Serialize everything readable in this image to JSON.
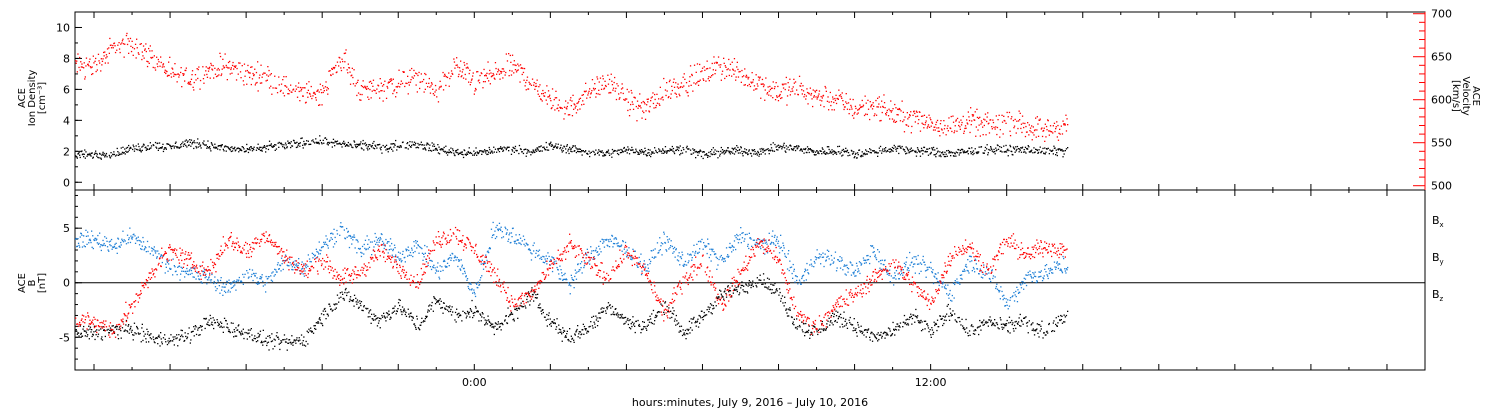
{
  "chart_data": [
    {
      "type": "scatter",
      "panel": "top",
      "ylabel_lines": [
        "ACE",
        "Ion Density",
        "[cm⁻³]"
      ],
      "ylim": [
        -0.5,
        11
      ],
      "yticks": [
        0,
        2,
        4,
        6,
        8,
        10
      ],
      "y2label_lines": [
        "ACE",
        "Velocity",
        "[km/s]"
      ],
      "y2lim": [
        495,
        702
      ],
      "y2ticks": [
        500,
        550,
        600,
        650,
        700
      ],
      "series": [
        {
          "axis": "left",
          "color": "#000000",
          "points": [
            [
              -10.0,
              1.8
            ],
            [
              -9.5,
              1.9
            ],
            [
              -9.0,
              2.2
            ],
            [
              -8.5,
              2.4
            ],
            [
              -8.0,
              2.3
            ],
            [
              -7.5,
              2.6
            ],
            [
              -7.0,
              2.4
            ],
            [
              -6.5,
              2.2
            ],
            [
              -6.0,
              2.1
            ],
            [
              -5.5,
              2.3
            ],
            [
              -5.0,
              2.4
            ],
            [
              -4.5,
              2.6
            ],
            [
              -4.0,
              2.7
            ],
            [
              -3.5,
              2.5
            ],
            [
              -3.0,
              2.4
            ],
            [
              -2.5,
              2.3
            ],
            [
              -2.0,
              2.4
            ],
            [
              -1.5,
              2.5
            ],
            [
              -1.0,
              2.2
            ],
            [
              -0.5,
              2.0
            ],
            [
              0.0,
              1.9
            ],
            [
              0.5,
              2.1
            ],
            [
              1.0,
              2.2
            ],
            [
              1.5,
              2.0
            ],
            [
              2.0,
              2.4
            ],
            [
              2.5,
              2.2
            ],
            [
              3.0,
              2.0
            ],
            [
              3.5,
              1.9
            ],
            [
              4.0,
              2.1
            ],
            [
              4.5,
              2.0
            ],
            [
              5.0,
              2.1
            ],
            [
              5.5,
              2.2
            ],
            [
              6.0,
              1.8
            ],
            [
              6.5,
              2.0
            ],
            [
              7.0,
              2.1
            ],
            [
              7.5,
              2.0
            ],
            [
              8.0,
              2.3
            ],
            [
              8.5,
              2.2
            ],
            [
              9.0,
              2.0
            ],
            [
              9.5,
              2.1
            ],
            [
              10.0,
              1.9
            ],
            [
              10.5,
              2.0
            ],
            [
              11.0,
              2.2
            ],
            [
              11.5,
              2.1
            ],
            [
              12.0,
              2.0
            ],
            [
              12.5,
              1.9
            ],
            [
              13.0,
              2.0
            ],
            [
              13.5,
              2.2
            ],
            [
              14.0,
              2.1
            ],
            [
              14.5,
              2.2
            ],
            [
              15.0,
              2.0
            ],
            [
              15.5,
              2.1
            ]
          ]
        },
        {
          "axis": "right",
          "color": "#ff0000",
          "points": [
            [
              -10.0,
              640
            ],
            [
              -9.5,
              660
            ],
            [
              -9.0,
              665
            ],
            [
              -8.5,
              650
            ],
            [
              -8.0,
              630
            ],
            [
              -7.5,
              625
            ],
            [
              -7.0,
              635
            ],
            [
              -6.5,
              640
            ],
            [
              -6.0,
              630
            ],
            [
              -5.5,
              628
            ],
            [
              -5.0,
              615
            ],
            [
              -4.5,
              607
            ],
            [
              -4.0,
              610
            ],
            [
              -3.5,
              650
            ],
            [
              -3.0,
              610
            ],
            [
              -2.5,
              615
            ],
            [
              -2.0,
              620
            ],
            [
              -1.5,
              625
            ],
            [
              -1.0,
              610
            ],
            [
              -0.5,
              640
            ],
            [
              0.0,
              620
            ],
            [
              0.5,
              630
            ],
            [
              1.0,
              640
            ],
            [
              1.5,
              620
            ],
            [
              2.0,
              600
            ],
            [
              2.5,
              590
            ],
            [
              3.0,
              610
            ],
            [
              3.5,
              620
            ],
            [
              4.0,
              600
            ],
            [
              4.5,
              590
            ],
            [
              5.0,
              610
            ],
            [
              5.5,
              620
            ],
            [
              6.0,
              630
            ],
            [
              6.5,
              640
            ],
            [
              7.0,
              630
            ],
            [
              7.5,
              620
            ],
            [
              8.0,
              610
            ],
            [
              8.5,
              615
            ],
            [
              9.0,
              605
            ],
            [
              9.5,
              600
            ],
            [
              10.0,
              590
            ],
            [
              10.5,
              595
            ],
            [
              11.0,
              585
            ],
            [
              11.5,
              580
            ],
            [
              12.0,
              575
            ],
            [
              12.5,
              570
            ],
            [
              13.0,
              575
            ],
            [
              13.5,
              570
            ],
            [
              14.0,
              575
            ],
            [
              14.5,
              570
            ],
            [
              15.0,
              565
            ],
            [
              15.5,
              570
            ]
          ]
        }
      ]
    },
    {
      "type": "scatter",
      "panel": "bottom",
      "ylabel_lines": [
        "ACE",
        "B",
        "[nT]"
      ],
      "ylim": [
        -8,
        8.5
      ],
      "yticks": [
        -5,
        0,
        5
      ],
      "zero_line": true,
      "series": [
        {
          "name": "Bx",
          "color": "#000000",
          "points": [
            [
              -10.0,
              -4.5
            ],
            [
              -9.5,
              -4.3
            ],
            [
              -9.0,
              -4.2
            ],
            [
              -8.5,
              -5.0
            ],
            [
              -8.0,
              -5.2
            ],
            [
              -7.5,
              -4.8
            ],
            [
              -7.0,
              -3.5
            ],
            [
              -6.5,
              -4.0
            ],
            [
              -6.0,
              -4.5
            ],
            [
              -5.5,
              -5.3
            ],
            [
              -5.0,
              -5.5
            ],
            [
              -4.5,
              -5.2
            ],
            [
              -4.0,
              -3.0
            ],
            [
              -3.5,
              -1.0
            ],
            [
              -3.0,
              -2.0
            ],
            [
              -2.5,
              -3.5
            ],
            [
              -2.0,
              -2.0
            ],
            [
              -1.5,
              -4.0
            ],
            [
              -1.0,
              -1.5
            ],
            [
              -0.5,
              -3.0
            ],
            [
              0.0,
              -2.5
            ],
            [
              0.5,
              -4.0
            ],
            [
              1.0,
              -3.0
            ],
            [
              1.5,
              -1.0
            ],
            [
              2.0,
              -3.5
            ],
            [
              2.5,
              -5.0
            ],
            [
              3.0,
              -4.0
            ],
            [
              3.5,
              -2.0
            ],
            [
              4.0,
              -3.5
            ],
            [
              4.5,
              -4.0
            ],
            [
              5.0,
              -2.0
            ],
            [
              5.5,
              -4.5
            ],
            [
              6.0,
              -3.0
            ],
            [
              6.5,
              -1.0
            ],
            [
              7.0,
              -0.5
            ],
            [
              7.5,
              0.5
            ],
            [
              8.0,
              -1.0
            ],
            [
              8.5,
              -4.0
            ],
            [
              9.0,
              -4.5
            ],
            [
              9.5,
              -3.0
            ],
            [
              10.0,
              -4.0
            ],
            [
              10.5,
              -5.0
            ],
            [
              11.0,
              -4.5
            ],
            [
              11.5,
              -3.0
            ],
            [
              12.0,
              -4.5
            ],
            [
              12.5,
              -2.5
            ],
            [
              13.0,
              -4.5
            ],
            [
              13.5,
              -3.5
            ],
            [
              14.0,
              -4.0
            ],
            [
              14.5,
              -3.5
            ],
            [
              15.0,
              -4.5
            ],
            [
              15.5,
              -3.0
            ]
          ]
        },
        {
          "name": "By",
          "color": "#1e7fd6",
          "points": [
            [
              -10.0,
              4.0
            ],
            [
              -9.5,
              3.5
            ],
            [
              -9.0,
              4.2
            ],
            [
              -8.5,
              3.0
            ],
            [
              -8.0,
              1.5
            ],
            [
              -7.5,
              1.0
            ],
            [
              -7.0,
              0.5
            ],
            [
              -6.5,
              -0.5
            ],
            [
              -6.0,
              1.0
            ],
            [
              -5.5,
              0.0
            ],
            [
              -5.0,
              2.0
            ],
            [
              -4.5,
              1.5
            ],
            [
              -4.0,
              3.5
            ],
            [
              -3.5,
              5.0
            ],
            [
              -3.0,
              3.0
            ],
            [
              -2.5,
              4.0
            ],
            [
              -2.0,
              2.5
            ],
            [
              -1.5,
              3.5
            ],
            [
              -1.0,
              1.0
            ],
            [
              -0.5,
              2.5
            ],
            [
              0.0,
              -1.0
            ],
            [
              0.5,
              5.0
            ],
            [
              1.0,
              4.5
            ],
            [
              1.5,
              3.0
            ],
            [
              2.0,
              2.0
            ],
            [
              2.5,
              0.0
            ],
            [
              3.0,
              2.5
            ],
            [
              3.5,
              4.0
            ],
            [
              4.0,
              3.0
            ],
            [
              4.5,
              1.5
            ],
            [
              5.0,
              4.0
            ],
            [
              5.5,
              2.0
            ],
            [
              6.0,
              3.5
            ],
            [
              6.5,
              2.0
            ],
            [
              7.0,
              4.5
            ],
            [
              7.5,
              3.5
            ],
            [
              8.0,
              4.0
            ],
            [
              8.5,
              0.0
            ],
            [
              9.0,
              2.5
            ],
            [
              9.5,
              2.0
            ],
            [
              10.0,
              1.0
            ],
            [
              10.5,
              3.0
            ],
            [
              11.0,
              0.5
            ],
            [
              11.5,
              2.0
            ],
            [
              12.0,
              1.0
            ],
            [
              12.5,
              -1.0
            ],
            [
              13.0,
              2.0
            ],
            [
              13.5,
              1.0
            ],
            [
              14.0,
              -2.0
            ],
            [
              14.5,
              0.5
            ],
            [
              15.0,
              1.0
            ],
            [
              15.5,
              1.5
            ]
          ]
        },
        {
          "name": "Bz",
          "color": "#ff0000",
          "points": [
            [
              -10.0,
              -3.5
            ],
            [
              -9.5,
              -4.5
            ],
            [
              -9.0,
              -2.0
            ],
            [
              -8.5,
              1.0
            ],
            [
              -8.0,
              3.0
            ],
            [
              -7.5,
              2.0
            ],
            [
              -7.0,
              1.0
            ],
            [
              -6.5,
              4.0
            ],
            [
              -6.0,
              3.0
            ],
            [
              -5.5,
              4.5
            ],
            [
              -5.0,
              2.5
            ],
            [
              -4.5,
              1.0
            ],
            [
              -4.0,
              2.0
            ],
            [
              -3.5,
              0.5
            ],
            [
              -3.0,
              1.0
            ],
            [
              -2.5,
              3.0
            ],
            [
              -2.0,
              1.5
            ],
            [
              -1.5,
              0.0
            ],
            [
              -1.0,
              4.0
            ],
            [
              -0.5,
              4.5
            ],
            [
              0.0,
              3.0
            ],
            [
              0.5,
              1.0
            ],
            [
              1.0,
              -2.0
            ],
            [
              1.5,
              -1.0
            ],
            [
              2.0,
              1.5
            ],
            [
              2.5,
              3.5
            ],
            [
              3.0,
              2.0
            ],
            [
              3.5,
              0.5
            ],
            [
              4.0,
              3.0
            ],
            [
              4.5,
              1.0
            ],
            [
              5.0,
              -3.0
            ],
            [
              5.5,
              0.5
            ],
            [
              6.0,
              2.0
            ],
            [
              6.5,
              -2.0
            ],
            [
              7.0,
              1.0
            ],
            [
              7.5,
              4.0
            ],
            [
              8.0,
              2.0
            ],
            [
              8.5,
              -3.0
            ],
            [
              9.0,
              -4.0
            ],
            [
              9.5,
              -2.0
            ],
            [
              10.0,
              -1.0
            ],
            [
              10.5,
              0.5
            ],
            [
              11.0,
              2.0
            ],
            [
              11.5,
              0.0
            ],
            [
              12.0,
              -2.0
            ],
            [
              12.5,
              2.5
            ],
            [
              13.0,
              3.5
            ],
            [
              13.5,
              1.0
            ],
            [
              14.0,
              4.0
            ],
            [
              14.5,
              2.5
            ],
            [
              15.0,
              3.5
            ],
            [
              15.5,
              3.0
            ]
          ]
        }
      ],
      "legend_position": "right",
      "legend": [
        {
          "main": "B",
          "sub": "x",
          "color": "#000000"
        },
        {
          "main": "B",
          "sub": "y",
          "color": "#1e7fd6"
        },
        {
          "main": "B",
          "sub": "z",
          "color": "#ff0000"
        }
      ]
    }
  ],
  "xlim": [
    -10.5,
    25
  ],
  "x_tick_labels": [
    {
      "t": 0,
      "label": "0:00"
    },
    {
      "t": 12,
      "label": "12:00"
    }
  ],
  "xlabel": "hours:minutes, July  9, 2016 – July 10, 2016"
}
